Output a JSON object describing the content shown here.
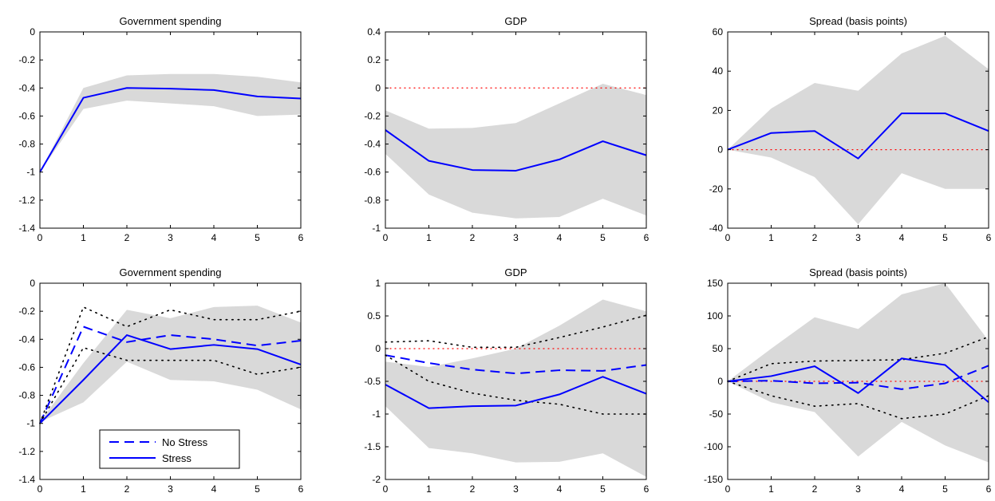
{
  "chart_data": [
    {
      "type": "line",
      "title": "Government spending",
      "x": [
        0,
        1,
        2,
        3,
        4,
        5,
        6
      ],
      "xlim": [
        0,
        6
      ],
      "ylim": [
        -1.4,
        0
      ],
      "xticks": [
        "0",
        "1",
        "2",
        "3",
        "4",
        "5",
        "6"
      ],
      "yticks": [
        "0",
        "-0.2",
        "-0.4",
        "-0.6",
        "-0.8",
        "-1",
        "-1.2",
        "-1.4"
      ],
      "band": {
        "lower": [
          -1.0,
          -0.55,
          -0.49,
          -0.51,
          -0.53,
          -0.6,
          -0.59
        ],
        "upper": [
          -1.0,
          -0.4,
          -0.31,
          -0.3,
          -0.3,
          -0.32,
          -0.36
        ]
      },
      "series": [
        {
          "style": "solid",
          "color": "#0000ff",
          "values": [
            -1.0,
            -0.47,
            -0.4,
            -0.405,
            -0.415,
            -0.46,
            -0.475
          ]
        }
      ]
    },
    {
      "type": "line",
      "title": "GDP",
      "x": [
        0,
        1,
        2,
        3,
        4,
        5,
        6
      ],
      "xlim": [
        0,
        6
      ],
      "ylim": [
        -1,
        0.4
      ],
      "xticks": [
        "0",
        "1",
        "2",
        "3",
        "4",
        "5",
        "6"
      ],
      "yticks": [
        "0.4",
        "0.2",
        "0",
        "-0.2",
        "-0.4",
        "-0.6",
        "-0.8",
        "-1"
      ],
      "zero_line": true,
      "band": {
        "lower": [
          -0.47,
          -0.76,
          -0.89,
          -0.93,
          -0.92,
          -0.79,
          -0.91
        ],
        "upper": [
          -0.16,
          -0.29,
          -0.285,
          -0.25,
          -0.11,
          0.03,
          -0.05
        ]
      },
      "series": [
        {
          "style": "solid",
          "color": "#0000ff",
          "values": [
            -0.3,
            -0.52,
            -0.585,
            -0.59,
            -0.51,
            -0.38,
            -0.48
          ]
        }
      ]
    },
    {
      "type": "line",
      "title": "Spread (basis points)",
      "x": [
        0,
        1,
        2,
        3,
        4,
        5,
        6
      ],
      "xlim": [
        0,
        6
      ],
      "ylim": [
        -40,
        60
      ],
      "xticks": [
        "0",
        "1",
        "2",
        "3",
        "4",
        "5",
        "6"
      ],
      "yticks": [
        "60",
        "40",
        "20",
        "0",
        "-20",
        "-40"
      ],
      "zero_line": true,
      "band": {
        "lower": [
          0,
          -4,
          -14,
          -38,
          -12,
          -20,
          -20
        ],
        "upper": [
          0,
          21,
          34,
          30,
          49,
          58,
          41
        ]
      },
      "series": [
        {
          "style": "solid",
          "color": "#0000ff",
          "values": [
            0,
            8.5,
            9.5,
            -4.5,
            18.5,
            18.5,
            9.5
          ]
        }
      ]
    },
    {
      "type": "line",
      "title": "Government spending",
      "x": [
        0,
        1,
        2,
        3,
        4,
        5,
        6
      ],
      "xlim": [
        0,
        6
      ],
      "ylim": [
        -1.4,
        0
      ],
      "xticks": [
        "0",
        "1",
        "2",
        "3",
        "4",
        "5",
        "6"
      ],
      "yticks": [
        "0",
        "-0.2",
        "-0.4",
        "-0.6",
        "-0.8",
        "-1",
        "-1.2",
        "-1.4"
      ],
      "band": {
        "lower": [
          -0.99,
          -0.85,
          -0.56,
          -0.69,
          -0.7,
          -0.76,
          -0.9
        ],
        "upper": [
          -0.99,
          -0.57,
          -0.19,
          -0.25,
          -0.17,
          -0.16,
          -0.28
        ]
      },
      "series": [
        {
          "name": "No Stress",
          "style": "dashed",
          "color": "#0000ff",
          "values": [
            -1.0,
            -0.31,
            -0.42,
            -0.37,
            -0.4,
            -0.445,
            -0.41
          ]
        },
        {
          "style": "dotted",
          "color": "#000000",
          "values": [
            -1.0,
            -0.46,
            -0.55,
            -0.55,
            -0.55,
            -0.65,
            -0.6
          ]
        },
        {
          "style": "dotted",
          "color": "#000000",
          "values": [
            -1.0,
            -0.17,
            -0.31,
            -0.19,
            -0.26,
            -0.26,
            -0.2
          ]
        },
        {
          "name": "Stress",
          "style": "solid",
          "color": "#0000ff",
          "values": [
            -1.0,
            -0.69,
            -0.37,
            -0.47,
            -0.44,
            -0.47,
            -0.58
          ]
        }
      ],
      "legend": {
        "position": "bottom-left",
        "items": [
          {
            "label": "No Stress",
            "style": "dashed",
            "color": "#0000ff"
          },
          {
            "label": "Stress",
            "style": "solid",
            "color": "#0000ff"
          }
        ]
      }
    },
    {
      "type": "line",
      "title": "GDP",
      "x": [
        0,
        1,
        2,
        3,
        4,
        5,
        6
      ],
      "xlim": [
        0,
        6
      ],
      "ylim": [
        -2,
        1
      ],
      "xticks": [
        "0",
        "1",
        "2",
        "3",
        "4",
        "5",
        "6"
      ],
      "yticks": [
        "1",
        "0.5",
        "0",
        "-0.5",
        "-1",
        "-1.5",
        "-2"
      ],
      "zero_line": true,
      "band": {
        "lower": [
          -0.88,
          -1.52,
          -1.6,
          -1.74,
          -1.73,
          -1.6,
          -1.96
        ],
        "upper": [
          -0.2,
          -0.28,
          -0.15,
          0.0,
          0.35,
          0.75,
          0.57
        ]
      },
      "series": [
        {
          "name": "No Stress",
          "style": "dashed",
          "color": "#0000ff",
          "values": [
            -0.1,
            -0.22,
            -0.32,
            -0.38,
            -0.33,
            -0.34,
            -0.25
          ]
        },
        {
          "style": "dotted",
          "color": "#000000",
          "values": [
            -0.1,
            -0.5,
            -0.68,
            -0.79,
            -0.85,
            -1.0,
            -1.0
          ]
        },
        {
          "style": "dotted",
          "color": "#000000",
          "values": [
            0.1,
            0.12,
            0.02,
            0.02,
            0.17,
            0.33,
            0.51
          ]
        },
        {
          "name": "Stress",
          "style": "solid",
          "color": "#0000ff",
          "values": [
            -0.55,
            -0.91,
            -0.88,
            -0.87,
            -0.7,
            -0.43,
            -0.69
          ]
        }
      ]
    },
    {
      "type": "line",
      "title": "Spread (basis points)",
      "x": [
        0,
        1,
        2,
        3,
        4,
        5,
        6
      ],
      "xlim": [
        0,
        6
      ],
      "ylim": [
        -150,
        150
      ],
      "xticks": [
        "0",
        "1",
        "2",
        "3",
        "4",
        "5",
        "6"
      ],
      "yticks": [
        "150",
        "100",
        "50",
        "0",
        "-50",
        "-100",
        "-150"
      ],
      "zero_line": true,
      "band": {
        "lower": [
          0,
          -32,
          -47,
          -115,
          -62,
          -98,
          -124
        ],
        "upper": [
          0,
          50,
          98,
          80,
          133,
          150,
          62
        ]
      },
      "series": [
        {
          "name": "No Stress",
          "style": "dashed",
          "color": "#0000ff",
          "values": [
            0,
            1,
            -3,
            -2,
            -12,
            -3,
            24
          ]
        },
        {
          "style": "dotted",
          "color": "#000000",
          "values": [
            0,
            -22,
            -38,
            -34,
            -57,
            -50,
            -22
          ]
        },
        {
          "style": "dotted",
          "color": "#000000",
          "values": [
            0,
            27,
            31,
            32,
            33,
            43,
            68
          ]
        },
        {
          "name": "Stress",
          "style": "solid",
          "color": "#0000ff",
          "values": [
            0,
            8,
            23,
            -18,
            35,
            25,
            -32
          ]
        }
      ]
    }
  ]
}
